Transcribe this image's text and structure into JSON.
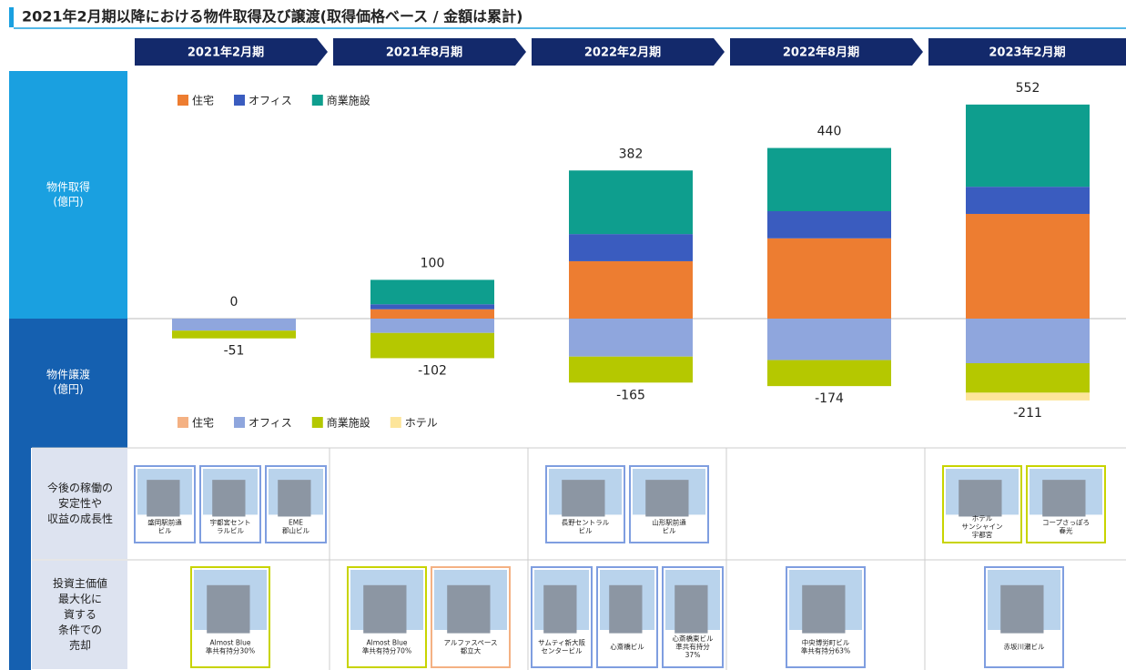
{
  "chart_data": {
    "type": "bar",
    "title": "2021年2月期以降における物件取得及び譲渡(取得価格ベース / 金額は累計)",
    "categories": [
      "2021年2月期",
      "2021年8月期",
      "2022年2月期",
      "2022年8月期",
      "2023年2月期"
    ],
    "acquisition_label": [
      "物件取得",
      "(億円)"
    ],
    "disposition_label": [
      "物件譲渡",
      "(億円)"
    ],
    "acquisition_series": [
      {
        "name": "住宅",
        "color": "#ed7d31",
        "values": [
          0,
          24,
          148,
          207,
          270
        ]
      },
      {
        "name": "オフィス",
        "color": "#3a5cbf",
        "values": [
          0,
          13,
          70,
          70,
          70
        ]
      },
      {
        "name": "商業施設",
        "color": "#0e9e8e",
        "values": [
          0,
          63,
          164,
          163,
          212
        ]
      }
    ],
    "acquisition_totals": [
      0,
      100,
      382,
      440,
      552
    ],
    "disposition_series": [
      {
        "name": "住宅",
        "color": "#f4b183",
        "values": [
          0,
          0,
          0,
          0,
          0
        ]
      },
      {
        "name": "オフィス",
        "color": "#8fa6dd",
        "values": [
          -31,
          -37,
          -98,
          -107,
          -115
        ]
      },
      {
        "name": "商業施設",
        "color": "#b5c800",
        "values": [
          -20,
          -65,
          -67,
          -67,
          -76
        ]
      },
      {
        "name": "ホテル",
        "color": "#fde59a",
        "values": [
          0,
          0,
          0,
          0,
          -20
        ]
      }
    ],
    "disposition_totals": [
      -51,
      -102,
      -165,
      -174,
      -211
    ]
  },
  "table": {
    "rows": [
      {
        "label": [
          "今後の稼働の",
          "安定性や",
          "収益の成長性"
        ],
        "cells": [
          [
            {
              "caption": [
                "盛岡駅前通",
                "ビル"
              ],
              "color": "#7f9ee0"
            },
            {
              "caption": [
                "宇都宮セント",
                "ラルビル"
              ],
              "color": "#7f9ee0"
            },
            {
              "caption": [
                "EME",
                "郡山ビル"
              ],
              "color": "#7f9ee0"
            }
          ],
          [],
          [
            {
              "caption": [
                "長野セントラル",
                "ビル"
              ],
              "color": "#7f9ee0"
            },
            {
              "caption": [
                "山形駅前通",
                "ビル"
              ],
              "color": "#7f9ee0"
            }
          ],
          [],
          [
            {
              "caption": [
                "ホテル",
                "サンシャイン",
                "宇都宮"
              ],
              "color": "#c8d400"
            },
            {
              "caption": [
                "コープさっぽろ",
                "春光"
              ],
              "color": "#c8d400"
            }
          ]
        ]
      },
      {
        "label": [
          "投資主価値",
          "最大化に",
          "資する",
          "条件での",
          "売却"
        ],
        "cells": [
          [
            {
              "caption": [
                "Almost Blue",
                "準共有持分30%"
              ],
              "color": "#c8d400"
            }
          ],
          [
            {
              "caption": [
                "Almost Blue",
                "準共有持分70%"
              ],
              "color": "#c8d400"
            },
            {
              "caption": [
                "アルファスペース",
                "都立大"
              ],
              "color": "#f4b183"
            }
          ],
          [
            {
              "caption": [
                "サムティ新大阪",
                "センタービル"
              ],
              "color": "#7f9ee0"
            },
            {
              "caption": [
                "心斎橋ビル"
              ],
              "color": "#7f9ee0"
            },
            {
              "caption": [
                "心斎橋東ビル",
                "準共有持分",
                "37%"
              ],
              "color": "#7f9ee0"
            }
          ],
          [
            {
              "caption": [
                "中央博労町ビル",
                "準共有持分63%"
              ],
              "color": "#7f9ee0"
            }
          ],
          [
            {
              "caption": [
                "赤坂川瀬ビル"
              ],
              "color": "#7f9ee0"
            }
          ]
        ]
      }
    ]
  }
}
